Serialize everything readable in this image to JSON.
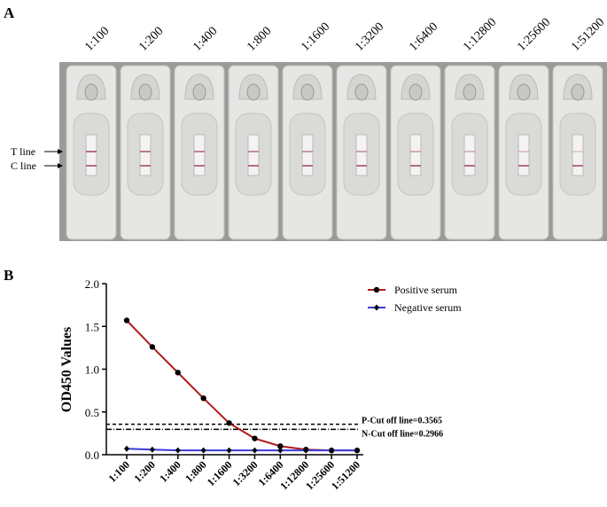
{
  "panel_a": {
    "label": "A",
    "dilutions": [
      "1:100",
      "1:200",
      "1:400",
      "1:800",
      "1:1600",
      "1:3200",
      "1:6400",
      "1:12800",
      "1:25600",
      "1:51200"
    ],
    "t_line": "T line",
    "c_line": "C line"
  },
  "chart_data": {
    "type": "line",
    "panel_label": "B",
    "y_label": "OD450 Values",
    "categories": [
      "1:100",
      "1:200",
      "1:400",
      "1:800",
      "1:1600",
      "1:3200",
      "1:6400",
      "1:12800",
      "1:25600",
      "1:51200"
    ],
    "series": [
      {
        "name": "Positive serum",
        "color": "#b01c1c",
        "marker_color": "#000000",
        "marker": "circle",
        "values": [
          1.57,
          1.26,
          0.96,
          0.66,
          0.37,
          0.19,
          0.1,
          0.06,
          0.05,
          0.05
        ]
      },
      {
        "name": "Negative serum",
        "color": "#3b3bdb",
        "marker_color": "#000000",
        "marker": "diamond",
        "values": [
          0.07,
          0.06,
          0.05,
          0.05,
          0.05,
          0.05,
          0.05,
          0.05,
          0.05,
          0.05
        ]
      }
    ],
    "ylim": [
      0,
      2
    ],
    "yticks": [
      {
        "value": 0,
        "label": "0.0"
      },
      {
        "value": 0.5,
        "label": "0.5"
      },
      {
        "value": 1,
        "label": "1.0"
      },
      {
        "value": 1.5,
        "label": "1.5"
      },
      {
        "value": 2,
        "label": "2.0"
      }
    ],
    "reference_lines": [
      {
        "value": 0.3565,
        "label": "P-Cut off line=0.3565",
        "dash": "4,3"
      },
      {
        "value": 0.2966,
        "label": "N-Cut off line=0.2966",
        "dash": "6,2,1,2"
      }
    ],
    "legend": "upper right",
    "grid": false
  }
}
